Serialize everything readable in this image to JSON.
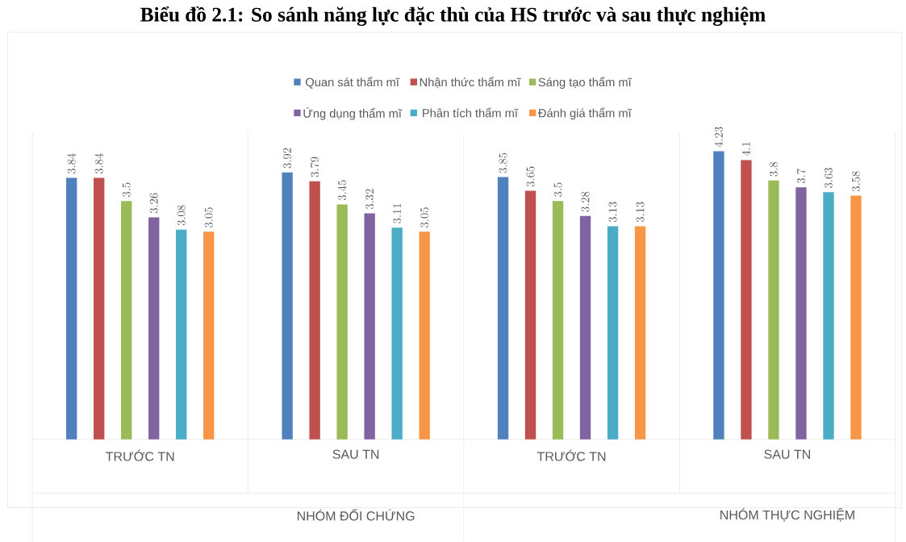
{
  "chart_data": {
    "type": "bar",
    "title": "Biểu đồ 2.1: So sánh năng lực đặc thù của HS trước và sau thực nghiệm",
    "categories": [
      "TRƯỚC TN",
      "SAU TN",
      "TRƯỚC TN",
      "SAU TN"
    ],
    "annotations": [
      "NHÓM ĐỐI CHỨNG",
      "NHÓM THỰC NGHIỆM"
    ],
    "series": [
      {
        "name": "Quan sát thẩm mĩ",
        "color": "#4f81bd",
        "values": [
          3.84,
          3.92,
          3.85,
          4.23
        ]
      },
      {
        "name": "Nhận thức thẩm mĩ",
        "color": "#c0504d",
        "values": [
          3.84,
          3.79,
          3.65,
          4.1
        ]
      },
      {
        "name": "Sáng tạo thẩm mĩ",
        "color": "#9bbb59",
        "values": [
          3.5,
          3.45,
          3.5,
          3.8
        ]
      },
      {
        "name": "Ứng dụng thẩm mĩ",
        "color": "#8064a2",
        "values": [
          3.26,
          3.32,
          3.28,
          3.7
        ]
      },
      {
        "name": "Phân tích thẩm mĩ",
        "color": "#4bacc6",
        "values": [
          3.08,
          3.11,
          3.13,
          3.63
        ]
      },
      {
        "name": "Đánh giá thẩm mĩ",
        "color": "#f79646",
        "values": [
          3.05,
          3.05,
          3.13,
          3.58
        ]
      }
    ],
    "ylim": [
      0,
      4.5
    ],
    "data_labels": true,
    "legend": "top",
    "tick_labels": "x"
  }
}
